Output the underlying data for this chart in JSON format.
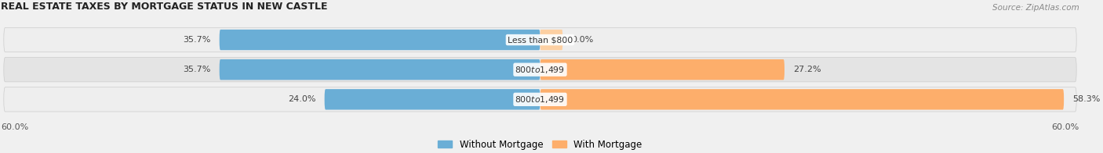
{
  "title": "REAL ESTATE TAXES BY MORTGAGE STATUS IN NEW CASTLE",
  "source": "Source: ZipAtlas.com",
  "rows": [
    {
      "without_mortgage_pct": 35.7,
      "with_mortgage_pct": 0.0,
      "label": "Less than $800"
    },
    {
      "without_mortgage_pct": 35.7,
      "with_mortgage_pct": 27.2,
      "label": "$800 to $1,499"
    },
    {
      "without_mortgage_pct": 24.0,
      "with_mortgage_pct": 58.3,
      "label": "$800 to $1,499"
    }
  ],
  "x_max": 60.0,
  "x_min": -60.0,
  "axis_label_left": "60.0%",
  "axis_label_right": "60.0%",
  "color_without": "#6aaed6",
  "color_with": "#fdae6b",
  "color_without_light": "#b8d4e8",
  "color_with_light": "#fdd0a2",
  "row_bg_color_odd": "#eeeeee",
  "row_bg_color_even": "#e4e4e4",
  "label_color": "#555555",
  "title_color": "#222222",
  "legend_label_without": "Without Mortgage",
  "legend_label_with": "With Mortgage"
}
